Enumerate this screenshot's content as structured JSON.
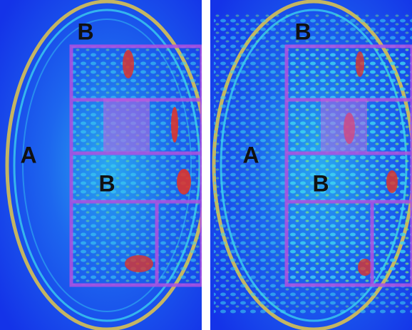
{
  "panels": [
    {
      "labels": {
        "top": "B",
        "left": "A",
        "middle": "B"
      }
    },
    {
      "labels": {
        "top": "B",
        "left": "A",
        "middle": "B"
      }
    }
  ]
}
